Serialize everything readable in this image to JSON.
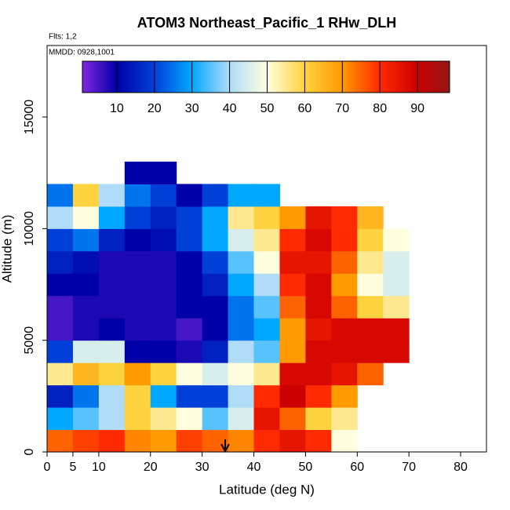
{
  "chart_data": {
    "type": "heatmap",
    "title": "ATOM3 Northeast_Pacific_1 RHw_DLH",
    "flights": "Flts: 1,2",
    "dates": "MMDD: 0928,1001",
    "xlabel": "Latitude (deg N)",
    "ylabel": "Altitude (m)",
    "xlim": [
      0,
      85
    ],
    "ylim": [
      0,
      18200
    ],
    "xticks": [
      0,
      5,
      10,
      20,
      30,
      40,
      50,
      60,
      70,
      80
    ],
    "yticks": [
      0,
      5000,
      10000,
      15000
    ],
    "lat_bins": [
      0,
      5,
      10,
      15,
      20,
      25,
      30,
      35,
      40,
      45,
      50,
      55,
      60,
      65,
      70
    ],
    "alt_bins": [
      0,
      1000,
      2000,
      3000,
      4000,
      5000,
      6000,
      7000,
      8000,
      9000,
      10000,
      11000,
      12000,
      13000
    ],
    "values": [
      [
        75,
        78,
        80,
        72,
        70,
        78,
        75,
        72,
        80,
        85,
        80,
        50,
        null,
        null
      ],
      [
        30,
        35,
        40,
        60,
        55,
        50,
        35,
        45,
        85,
        75,
        60,
        55,
        null,
        null
      ],
      [
        15,
        25,
        40,
        60,
        30,
        20,
        20,
        40,
        80,
        90,
        80,
        70,
        null,
        null
      ],
      [
        55,
        65,
        60,
        70,
        60,
        50,
        45,
        50,
        55,
        88,
        88,
        85,
        75,
        null
      ],
      [
        20,
        45,
        45,
        10,
        10,
        8,
        15,
        40,
        35,
        70,
        88,
        88,
        88,
        88
      ],
      [
        5,
        8,
        10,
        8,
        8,
        5,
        10,
        25,
        30,
        70,
        85,
        88,
        88,
        88
      ],
      [
        5,
        8,
        8,
        8,
        8,
        10,
        10,
        25,
        35,
        75,
        88,
        75,
        60,
        55
      ],
      [
        10,
        10,
        8,
        8,
        8,
        10,
        15,
        30,
        40,
        80,
        88,
        70,
        50,
        45
      ],
      [
        15,
        12,
        8,
        8,
        8,
        10,
        20,
        35,
        50,
        85,
        85,
        75,
        55,
        45
      ],
      [
        20,
        25,
        15,
        10,
        12,
        20,
        30,
        45,
        55,
        80,
        88,
        80,
        60,
        50
      ],
      [
        40,
        50,
        30,
        20,
        15,
        20,
        30,
        55,
        60,
        70,
        85,
        80,
        65,
        null
      ],
      [
        25,
        60,
        40,
        25,
        20,
        10,
        20,
        30,
        30,
        null,
        null,
        null,
        null,
        null
      ],
      [
        null,
        null,
        null,
        10,
        10,
        null,
        null,
        null,
        null,
        null,
        null,
        null,
        null,
        null
      ]
    ],
    "colorscale": [
      [
        0,
        "#8a2be2"
      ],
      [
        10,
        "#0000a8"
      ],
      [
        20,
        "#0040d8"
      ],
      [
        30,
        "#00a8ff"
      ],
      [
        40,
        "#b0dcf8"
      ],
      [
        50,
        "#ffffe0"
      ],
      [
        60,
        "#ffd23f"
      ],
      [
        70,
        "#ff9a00"
      ],
      [
        80,
        "#ff2a00"
      ],
      [
        90,
        "#cc0000"
      ],
      [
        100,
        "#8b1a1a"
      ]
    ],
    "colorbar_ticks": [
      10,
      20,
      30,
      40,
      50,
      60,
      70,
      80,
      90
    ]
  }
}
